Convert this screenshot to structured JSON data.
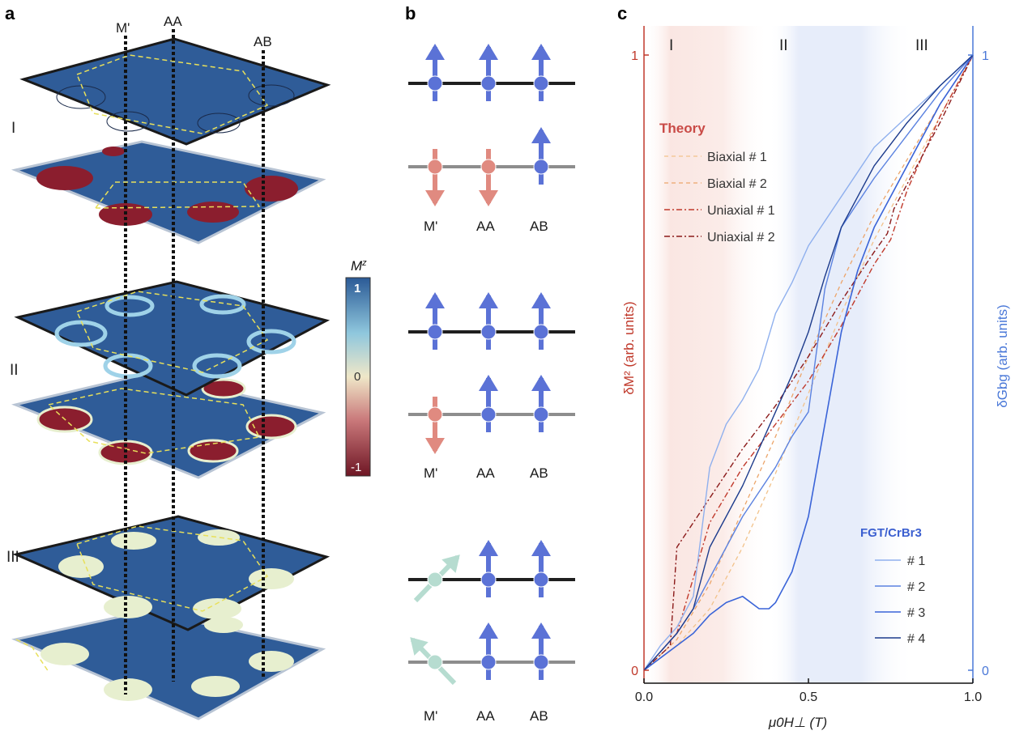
{
  "panels": {
    "a": {
      "letter": "a",
      "site_labels": [
        "M'",
        "AA",
        "AB"
      ],
      "region_labels": [
        "I",
        "II",
        "III"
      ],
      "colorbar": {
        "title": "M",
        "title_sup": "z",
        "ticks": [
          "1",
          "0",
          "-1"
        ]
      },
      "colors": {
        "blue": "#2b5a96",
        "red": "#8b1e2e",
        "ring": "#9fd2e8",
        "pale": "#e7efcf",
        "guide": "#e8e05a"
      }
    },
    "b": {
      "letter": "b",
      "rows": [
        {
          "labels": [
            "M'",
            "AA",
            "AB"
          ]
        },
        {
          "labels": [
            "M'",
            "AA",
            "AB"
          ]
        },
        {
          "labels": [
            "M'",
            "AA",
            "AB"
          ]
        }
      ],
      "colors": {
        "up": "#5b72d6",
        "down": "#e08a80",
        "tilt": "#b6dcd0"
      }
    },
    "c": {
      "letter": "c"
    }
  },
  "chart_data": {
    "type": "line",
    "regions": [
      "I",
      "II",
      "III"
    ],
    "xlabel": "μ0H⊥ (T)",
    "ylabel_left": "δM² (arb. units)",
    "ylabel_right": "δGbg (arb. units)",
    "xlim": [
      0,
      1
    ],
    "ylim": [
      0,
      1
    ],
    "x_ticks": [
      "0.0",
      "0.5",
      "1.0"
    ],
    "y_ticks_left": [
      "0",
      "1"
    ],
    "y_ticks_right": [
      "0",
      "1"
    ],
    "theory_title": "Theory",
    "experiment_title": "FGT/CrBr3",
    "colors": {
      "left_axis": "#c0392b",
      "right_axis": "#4a78d8",
      "theory_title": "#c94a46",
      "experiment_title": "#3b5fd0"
    },
    "series": [
      {
        "name": "Biaxial # 1",
        "group": "theory",
        "color": "#f2c28a",
        "dash": "5,4",
        "width": 1.3,
        "x": [
          0,
          0.1,
          0.2,
          0.3,
          0.4,
          0.5,
          0.6,
          0.7,
          0.8,
          0.9,
          1.0
        ],
        "y": [
          0,
          0.04,
          0.1,
          0.2,
          0.32,
          0.45,
          0.58,
          0.7,
          0.8,
          0.9,
          1.0
        ]
      },
      {
        "name": "Biaxial # 2",
        "group": "theory",
        "color": "#eca56a",
        "dash": "5,4",
        "width": 1.3,
        "x": [
          0,
          0.1,
          0.2,
          0.3,
          0.4,
          0.5,
          0.6,
          0.7,
          0.8,
          0.9,
          1.0
        ],
        "y": [
          0,
          0.05,
          0.14,
          0.26,
          0.38,
          0.51,
          0.63,
          0.74,
          0.83,
          0.92,
          1.0
        ]
      },
      {
        "name": "Uniaxial # 1",
        "group": "theory",
        "color": "#c0392b",
        "dash": "7,3,2,3",
        "width": 1.4,
        "x": [
          0,
          0.1,
          0.15,
          0.2,
          0.3,
          0.4,
          0.5,
          0.6,
          0.7,
          0.75,
          0.8,
          0.9,
          1.0
        ],
        "y": [
          0,
          0.06,
          0.15,
          0.24,
          0.33,
          0.4,
          0.47,
          0.56,
          0.66,
          0.7,
          0.78,
          0.9,
          1.0
        ]
      },
      {
        "name": "Uniaxial # 2",
        "group": "theory",
        "color": "#8b1a1a",
        "dash": "7,3,2,3",
        "width": 1.4,
        "x": [
          0,
          0.08,
          0.1,
          0.2,
          0.3,
          0.4,
          0.5,
          0.6,
          0.7,
          0.74,
          0.76,
          0.8,
          0.9,
          1.0
        ],
        "y": [
          0,
          0.04,
          0.2,
          0.28,
          0.36,
          0.43,
          0.51,
          0.6,
          0.68,
          0.71,
          0.75,
          0.79,
          0.89,
          1.0
        ]
      },
      {
        "name": "# 1",
        "group": "experiment",
        "color": "#8fb0ee",
        "dash": "",
        "width": 1.4,
        "x": [
          0,
          0.05,
          0.1,
          0.15,
          0.2,
          0.25,
          0.3,
          0.35,
          0.4,
          0.45,
          0.5,
          0.55,
          0.6,
          0.7,
          0.8,
          0.9,
          1.0
        ],
        "y": [
          0,
          0.04,
          0.07,
          0.12,
          0.33,
          0.4,
          0.44,
          0.49,
          0.58,
          0.63,
          0.69,
          0.73,
          0.77,
          0.85,
          0.9,
          0.95,
          1.0
        ]
      },
      {
        "name": "# 2",
        "group": "experiment",
        "color": "#5b82e0",
        "dash": "",
        "width": 1.4,
        "x": [
          0,
          0.05,
          0.1,
          0.15,
          0.2,
          0.25,
          0.3,
          0.35,
          0.4,
          0.45,
          0.5,
          0.52,
          0.55,
          0.6,
          0.7,
          0.8,
          0.9,
          1.0
        ],
        "y": [
          0,
          0.03,
          0.06,
          0.1,
          0.15,
          0.2,
          0.25,
          0.29,
          0.33,
          0.38,
          0.42,
          0.5,
          0.62,
          0.72,
          0.8,
          0.87,
          0.94,
          1.0
        ]
      },
      {
        "name": "# 3",
        "group": "experiment",
        "color": "#3a64d8",
        "dash": "",
        "width": 1.6,
        "x": [
          0,
          0.05,
          0.1,
          0.15,
          0.2,
          0.25,
          0.3,
          0.35,
          0.38,
          0.4,
          0.45,
          0.5,
          0.55,
          0.6,
          0.65,
          0.7,
          0.8,
          0.9,
          1.0
        ],
        "y": [
          0,
          0.02,
          0.04,
          0.06,
          0.09,
          0.11,
          0.12,
          0.1,
          0.1,
          0.11,
          0.16,
          0.25,
          0.4,
          0.55,
          0.65,
          0.72,
          0.82,
          0.92,
          1.0
        ]
      },
      {
        "name": "# 4",
        "group": "experiment",
        "color": "#1c3b8c",
        "dash": "",
        "width": 1.4,
        "x": [
          0,
          0.05,
          0.1,
          0.15,
          0.2,
          0.25,
          0.3,
          0.35,
          0.4,
          0.45,
          0.5,
          0.55,
          0.6,
          0.65,
          0.7,
          0.8,
          0.9,
          1.0
        ],
        "y": [
          0,
          0.03,
          0.06,
          0.1,
          0.2,
          0.25,
          0.3,
          0.36,
          0.42,
          0.48,
          0.55,
          0.64,
          0.72,
          0.77,
          0.82,
          0.89,
          0.95,
          1.0
        ]
      }
    ]
  }
}
